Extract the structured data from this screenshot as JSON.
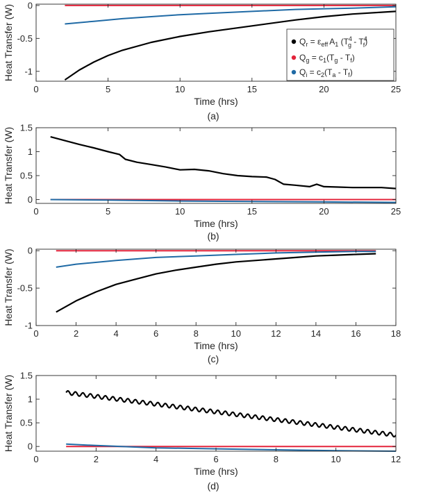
{
  "colors": {
    "qr": "#000000",
    "qg": "#e3243b",
    "qi": "#1f6aa5",
    "axis": "#262626"
  },
  "legend": {
    "qr": {
      "t1": "Q",
      "s1": "r",
      "t2": " = ε",
      "s2": "eff",
      "t3": "A",
      "s3": "1",
      "t4": " (T",
      "s4a": "g",
      "s4b": "4",
      "t5": " - T",
      "s5a": "f",
      "s5b": "4",
      "t6": ")"
    },
    "qg": {
      "t1": "Q",
      "s1": "g",
      "t2": " = c",
      "s2": "1",
      "t3": "(T",
      "s3": "g",
      "t4": " - T",
      "s4": "f",
      "t5": ")"
    },
    "qi": {
      "t1": "Q",
      "s1": "i",
      "t2": " = c",
      "s2": "2",
      "t3": "(T",
      "s3": "a",
      "t4": " - T",
      "s4": "f",
      "t5": ")"
    }
  },
  "chart_data": [
    {
      "type": "line",
      "panel_label": "(a)",
      "xlabel": "Time (hrs)",
      "ylabel": "Heat Transfer (W)",
      "xlim": [
        0,
        25
      ],
      "ylim": [
        -1.15,
        0.02
      ],
      "xticks": [
        0,
        5,
        10,
        15,
        20,
        25
      ],
      "xtick_labels": [
        "0",
        "5",
        "10",
        "15",
        "20",
        "25"
      ],
      "yticks": [
        -1,
        -0.5,
        0
      ],
      "ytick_labels": [
        "-1",
        "-0.5",
        "0"
      ],
      "legend_position": "right",
      "series": [
        {
          "name": "Qr",
          "x": [
            2,
            3,
            4,
            5,
            6,
            8,
            10,
            12,
            15,
            18,
            20,
            22,
            25
          ],
          "y": [
            -1.13,
            -0.98,
            -0.86,
            -0.76,
            -0.68,
            -0.56,
            -0.47,
            -0.4,
            -0.31,
            -0.22,
            -0.17,
            -0.13,
            -0.09
          ]
        },
        {
          "name": "Qg",
          "x": [
            2,
            25
          ],
          "y": [
            0.0,
            0.0
          ]
        },
        {
          "name": "Qi",
          "x": [
            2,
            4,
            6,
            8,
            10,
            12,
            15,
            18,
            20,
            22,
            25
          ],
          "y": [
            -0.28,
            -0.24,
            -0.2,
            -0.17,
            -0.14,
            -0.12,
            -0.09,
            -0.06,
            -0.05,
            -0.04,
            -0.02
          ]
        }
      ]
    },
    {
      "type": "line",
      "panel_label": "(b)",
      "xlabel": "Time (hrs)",
      "ylabel": "Heat Transfer (W)",
      "xlim": [
        0,
        25
      ],
      "ylim": [
        -0.08,
        1.5
      ],
      "xticks": [
        0,
        5,
        10,
        15,
        20,
        25
      ],
      "xtick_labels": [
        "0",
        "5",
        "10",
        "15",
        "20",
        "25"
      ],
      "yticks": [
        0,
        0.5,
        1,
        1.5
      ],
      "ytick_labels": [
        "0",
        "0.5",
        "1",
        "1.5"
      ],
      "series": [
        {
          "name": "Qr",
          "x": [
            1,
            2,
            3,
            4,
            5,
            5.8,
            6.2,
            7,
            8,
            9,
            10,
            11,
            12,
            13,
            14,
            15,
            16,
            16.6,
            17.2,
            18,
            19,
            19.5,
            20,
            21,
            22,
            23,
            24,
            25
          ],
          "y": [
            1.31,
            1.23,
            1.15,
            1.08,
            1.0,
            0.94,
            0.84,
            0.78,
            0.73,
            0.68,
            0.62,
            0.63,
            0.6,
            0.54,
            0.5,
            0.48,
            0.47,
            0.42,
            0.32,
            0.3,
            0.27,
            0.32,
            0.27,
            0.26,
            0.25,
            0.25,
            0.25,
            0.23
          ]
        },
        {
          "name": "Qg",
          "x": [
            1,
            25
          ],
          "y": [
            0.0,
            0.0
          ]
        },
        {
          "name": "Qi",
          "x": [
            1,
            5,
            10,
            15,
            20,
            25
          ],
          "y": [
            0.0,
            -0.01,
            -0.03,
            -0.04,
            -0.05,
            -0.06
          ]
        }
      ]
    },
    {
      "type": "line",
      "panel_label": "(c)",
      "xlabel": "Time (hrs)",
      "ylabel": "Heat Transfer (W)",
      "xlim": [
        0,
        18
      ],
      "ylim": [
        -1,
        0.02
      ],
      "xticks": [
        0,
        2,
        4,
        6,
        8,
        10,
        12,
        14,
        16,
        18
      ],
      "xtick_labels": [
        "0",
        "2",
        "4",
        "6",
        "8",
        "10",
        "12",
        "14",
        "16",
        "18"
      ],
      "yticks": [
        -1,
        -0.5,
        0
      ],
      "ytick_labels": [
        "-1",
        "-0.5",
        "0"
      ],
      "series": [
        {
          "name": "Qr",
          "x": [
            1,
            2,
            3,
            4,
            5,
            6,
            7,
            8,
            9,
            10,
            11,
            12,
            13,
            14,
            15,
            16,
            17
          ],
          "y": [
            -0.82,
            -0.67,
            -0.55,
            -0.45,
            -0.38,
            -0.31,
            -0.26,
            -0.22,
            -0.18,
            -0.15,
            -0.13,
            -0.11,
            -0.09,
            -0.07,
            -0.06,
            -0.05,
            -0.04
          ]
        },
        {
          "name": "Qg",
          "x": [
            1,
            17
          ],
          "y": [
            0.0,
            0.0
          ]
        },
        {
          "name": "Qi",
          "x": [
            1,
            2,
            4,
            6,
            8,
            10,
            12,
            14,
            16,
            17
          ],
          "y": [
            -0.22,
            -0.18,
            -0.13,
            -0.09,
            -0.07,
            -0.05,
            -0.03,
            -0.02,
            -0.01,
            -0.01
          ]
        }
      ]
    },
    {
      "type": "line",
      "panel_label": "(d)",
      "xlabel": "Time (hrs)",
      "ylabel": "Heat Transfer (W)",
      "xlim": [
        0,
        12
      ],
      "ylim": [
        -0.1,
        1.5
      ],
      "xticks": [
        0,
        2,
        4,
        6,
        8,
        10,
        12
      ],
      "xtick_labels": [
        "0",
        "2",
        "4",
        "6",
        "8",
        "10",
        "12"
      ],
      "yticks": [
        0,
        0.5,
        1,
        1.5
      ],
      "ytick_labels": [
        "0",
        "0.5",
        "1",
        "1.5"
      ],
      "series": [
        {
          "name": "Qr",
          "x_start": 1,
          "x_end": 12,
          "y_start": 1.14,
          "y_end": 0.24,
          "oscillation_amplitude": 0.04,
          "oscillation_period": 0.25
        },
        {
          "name": "Qg",
          "x": [
            1,
            12
          ],
          "y": [
            0.0,
            0.0
          ]
        },
        {
          "name": "Qi",
          "x": [
            1,
            2,
            4,
            6,
            8,
            10,
            12
          ],
          "y": [
            0.05,
            0.02,
            -0.03,
            -0.05,
            -0.07,
            -0.09,
            -0.1
          ]
        }
      ]
    }
  ]
}
